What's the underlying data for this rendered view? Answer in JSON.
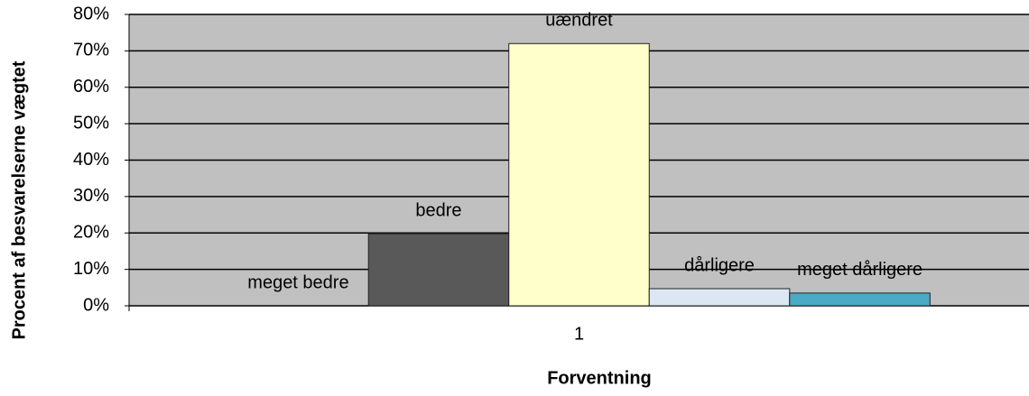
{
  "chart_data": {
    "type": "bar",
    "x_label": "Forventning",
    "y_label": "Procent af besvarelserne vægtet",
    "categories": [
      "1"
    ],
    "series": [
      {
        "name": "meget bedre",
        "color": "#9999ff",
        "values": [
          0
        ]
      },
      {
        "name": "bedre",
        "color": "#595959",
        "values": [
          19.8
        ]
      },
      {
        "name": "uændret",
        "color": "#ffffcc",
        "values": [
          72
        ]
      },
      {
        "name": "dårligere",
        "color": "#dde7f4",
        "values": [
          4.7
        ]
      },
      {
        "name": "meget dårligere",
        "color": "#4aaac6",
        "values": [
          3.5
        ]
      }
    ],
    "ylim": [
      0,
      80
    ],
    "yticks": [
      {
        "value": 0,
        "label": "0%"
      },
      {
        "value": 10,
        "label": "10%"
      },
      {
        "value": 20,
        "label": "20%"
      },
      {
        "value": 30,
        "label": "30%"
      },
      {
        "value": 40,
        "label": "40%"
      },
      {
        "value": 50,
        "label": "50%"
      },
      {
        "value": 60,
        "label": "60%"
      },
      {
        "value": 70,
        "label": "70%"
      },
      {
        "value": 80,
        "label": "80%"
      }
    ],
    "grid": true
  }
}
